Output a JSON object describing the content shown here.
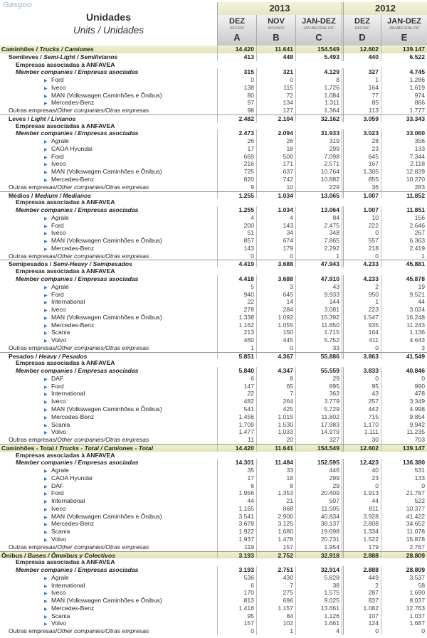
{
  "header": {
    "title": "Unidades",
    "subtitle": "Units / Unidades",
    "years": [
      "2013",
      "2012"
    ],
    "columns": [
      {
        "main": "DEZ",
        "sub": "DEC/DIC",
        "letter": "A"
      },
      {
        "main": "NOV",
        "sub": "NOV/NOV",
        "letter": "B"
      },
      {
        "main": "JAN-DEZ",
        "sub": "JAN-BEC/ENE-DIC",
        "letter": "C"
      },
      {
        "main": "DEZ",
        "sub": "DEC/DIC",
        "letter": "D"
      },
      {
        "main": "JAN-DEZ",
        "sub": "JAN-BEC/ENE-DIC",
        "letter": "E"
      }
    ]
  },
  "labels": {
    "assoc": "Empresas associadas à ANFAVEA",
    "member": "Member companies / Empresas asociadas",
    "others_pt": "Outras empresas/",
    "others_en": "Other companies",
    "others_es": "/Otras empresas"
  },
  "top": {
    "pt": "Caminhões / ",
    "en": "Trucks / Camiones",
    "values": [
      "14.420",
      "11.641",
      "154.549",
      "12.602",
      "139.147"
    ]
  },
  "sections": [
    {
      "pt": "Semileves / ",
      "en": "Semi-Light / Semilivianos",
      "values": [
        "413",
        "448",
        "5.493",
        "440",
        "6.522"
      ],
      "member": [
        "315",
        "321",
        "4.129",
        "327",
        "4.745"
      ],
      "companies": [
        {
          "name": "Ford",
          "values": [
            "0",
            "0",
            "8",
            "1",
            "1.286"
          ]
        },
        {
          "name": "Iveco",
          "values": [
            "138",
            "115",
            "1.726",
            "164",
            "1.619"
          ]
        },
        {
          "name": "MAN (Volkswagen Caminhões e Ônibus)",
          "values": [
            "80",
            "72",
            "1.084",
            "77",
            "974"
          ]
        },
        {
          "name": "Mercedes-Benz",
          "values": [
            "97",
            "134",
            "1.311",
            "85",
            "866"
          ]
        }
      ],
      "others": [
        "98",
        "127",
        "1.364",
        "113",
        "1.777"
      ]
    },
    {
      "pt": "Leves / ",
      "en": "Light / Livianos",
      "values": [
        "2.482",
        "2.104",
        "32.162",
        "3.059",
        "33.343"
      ],
      "member": [
        "2.473",
        "2.094",
        "31.933",
        "3.023",
        "33.060"
      ],
      "companies": [
        {
          "name": "Agrale",
          "values": [
            "26",
            "26",
            "319",
            "28",
            "356"
          ]
        },
        {
          "name": "CAOA Hyundai",
          "values": [
            "17",
            "18",
            "299",
            "23",
            "133"
          ]
        },
        {
          "name": "Ford",
          "values": [
            "669",
            "500",
            "7.098",
            "645",
            "7.344"
          ]
        },
        {
          "name": "Iveco",
          "values": [
            "216",
            "171",
            "2.571",
            "167",
            "2.118"
          ]
        },
        {
          "name": "MAN (Volkswagen Caminhões e Ônibus)",
          "values": [
            "725",
            "637",
            "10.764",
            "1.305",
            "12.839"
          ]
        },
        {
          "name": "Mercedes-Benz",
          "values": [
            "820",
            "742",
            "10.882",
            "855",
            "10.270"
          ]
        }
      ],
      "others": [
        "9",
        "10",
        "229",
        "36",
        "283"
      ]
    },
    {
      "pt": "Médios / ",
      "en": "Medium / Medianos",
      "values": [
        "1.255",
        "1.034",
        "13.065",
        "1.007",
        "11.852"
      ],
      "member": [
        "1.255",
        "1.034",
        "13.064",
        "1.007",
        "11.851"
      ],
      "companies": [
        {
          "name": "Agrale",
          "values": [
            "4",
            "4",
            "84",
            "10",
            "156"
          ]
        },
        {
          "name": "Ford",
          "values": [
            "200",
            "143",
            "2.475",
            "222",
            "2.646"
          ]
        },
        {
          "name": "Iveco",
          "values": [
            "51",
            "34",
            "348",
            "0",
            "267"
          ]
        },
        {
          "name": "MAN (Volkswagen Caminhões e Ônibus)",
          "values": [
            "857",
            "674",
            "7.865",
            "557",
            "6.363"
          ]
        },
        {
          "name": "Mercedes-Benz",
          "values": [
            "143",
            "179",
            "2.292",
            "218",
            "2.419"
          ]
        }
      ],
      "others": [
        "0",
        "0",
        "1",
        "0",
        "1"
      ]
    },
    {
      "pt": "Semipesados / ",
      "en": "Semi-Heavy / Semipesados",
      "values": [
        "4.419",
        "3.688",
        "47.943",
        "4.233",
        "45.881"
      ],
      "member": [
        "4.418",
        "3.688",
        "47.910",
        "4.233",
        "45.878"
      ],
      "companies": [
        {
          "name": "Agrale",
          "values": [
            "5",
            "3",
            "43",
            "2",
            "19"
          ]
        },
        {
          "name": "Ford",
          "values": [
            "940",
            "645",
            "9.933",
            "950",
            "9.521"
          ]
        },
        {
          "name": "International",
          "values": [
            "22",
            "14",
            "144",
            "1",
            "44"
          ]
        },
        {
          "name": "Iveco",
          "values": [
            "278",
            "284",
            "3.081",
            "223",
            "3.024"
          ]
        },
        {
          "name": "MAN (Volkswagen Caminhões e Ônibus)",
          "values": [
            "1.338",
            "1.092",
            "15.392",
            "1.547",
            "16.248"
          ]
        },
        {
          "name": "Mercedes-Benz",
          "values": [
            "1.162",
            "1.055",
            "11.850",
            "935",
            "11.243"
          ]
        },
        {
          "name": "Scania",
          "values": [
            "213",
            "150",
            "1.715",
            "164",
            "1.136"
          ]
        },
        {
          "name": "Volvo",
          "values": [
            "460",
            "445",
            "5.752",
            "411",
            "4.643"
          ]
        }
      ],
      "others": [
        "1",
        "0",
        "33",
        "0",
        "3"
      ]
    },
    {
      "pt": "Pesados / ",
      "en": "Heavy / Pesados",
      "values": [
        "5.851",
        "4.367",
        "55.886",
        "3.863",
        "41.549"
      ],
      "member": [
        "5.840",
        "4.347",
        "55.559",
        "3.833",
        "40.846"
      ],
      "companies": [
        {
          "name": "DAF",
          "values": [
            "6",
            "8",
            "29",
            "0",
            "0"
          ]
        },
        {
          "name": "Ford",
          "values": [
            "147",
            "65",
            "895",
            "95",
            "990"
          ]
        },
        {
          "name": "International",
          "values": [
            "22",
            "7",
            "363",
            "43",
            "478"
          ]
        },
        {
          "name": "Iveco",
          "values": [
            "482",
            "264",
            "3.779",
            "257",
            "3.349"
          ]
        },
        {
          "name": "MAN (Volkswagen Caminhões e Ônibus)",
          "values": [
            "541",
            "425",
            "5.729",
            "442",
            "4.998"
          ]
        },
        {
          "name": "Mercedes-Benz",
          "values": [
            "1.456",
            "1.015",
            "11.802",
            "715",
            "9.854"
          ]
        },
        {
          "name": "Scania",
          "values": [
            "1.709",
            "1.530",
            "17.983",
            "1.170",
            "9.942"
          ]
        },
        {
          "name": "Volvo",
          "values": [
            "1.477",
            "1.033",
            "14.979",
            "1.111",
            "11.235"
          ]
        }
      ],
      "others": [
        "11",
        "20",
        "327",
        "30",
        "703"
      ]
    },
    {
      "hl": true,
      "pt": "Caminhões - Total / ",
      "en": "Trucks - Total  / Camiones - Total",
      "values": [
        "14.420",
        "11.641",
        "154.549",
        "12.602",
        "139.147"
      ],
      "member": [
        "14.301",
        "11.484",
        "152.595",
        "12.423",
        "136.380"
      ],
      "companies": [
        {
          "name": "Agrale",
          "values": [
            "35",
            "33",
            "446",
            "40",
            "531"
          ]
        },
        {
          "name": "CAOA Hyundai",
          "values": [
            "17",
            "18",
            "299",
            "23",
            "133"
          ]
        },
        {
          "name": "DAF",
          "values": [
            "6",
            "8",
            "29",
            "0",
            "0"
          ]
        },
        {
          "name": "Ford",
          "values": [
            "1.956",
            "1.353",
            "20.409",
            "1.913",
            "21.787"
          ]
        },
        {
          "name": "International",
          "values": [
            "44",
            "21",
            "507",
            "44",
            "522"
          ]
        },
        {
          "name": "Iveco",
          "values": [
            "1.165",
            "868",
            "11.505",
            "811",
            "10.377"
          ]
        },
        {
          "name": "MAN (Volkswagen Caminhões e Ônibus)",
          "values": [
            "3.541",
            "2.900",
            "40.834",
            "3.928",
            "41.422"
          ]
        },
        {
          "name": "Mercedes-Benz",
          "values": [
            "3.678",
            "3.125",
            "38.137",
            "2.808",
            "34.652"
          ]
        },
        {
          "name": "Scania",
          "values": [
            "1.922",
            "1.680",
            "19.698",
            "1.334",
            "11.078"
          ]
        },
        {
          "name": "Volvo",
          "values": [
            "1.937",
            "1.478",
            "20.731",
            "1.522",
            "15.878"
          ]
        }
      ],
      "others": [
        "119",
        "157",
        "1.954",
        "179",
        "2.767"
      ]
    },
    {
      "hl": true,
      "pt": "Ônibus / ",
      "en": "Buses / Ômnibus y Colectivos",
      "values": [
        "3.193",
        "2.752",
        "32.918",
        "2.888",
        "28.809"
      ],
      "member": [
        "3.193",
        "2.751",
        "32.914",
        "2.888",
        "28.809"
      ],
      "companies": [
        {
          "name": "Agrale",
          "values": [
            "536",
            "430",
            "5.828",
            "449",
            "3.537"
          ]
        },
        {
          "name": "International",
          "values": [
            "6",
            "7",
            "38",
            "2",
            "58"
          ]
        },
        {
          "name": "Iveco",
          "values": [
            "170",
            "275",
            "1.575",
            "287",
            "1.690"
          ]
        },
        {
          "name": "MAN (Volkswagen Caminhões e Ônibus)",
          "values": [
            "813",
            "696",
            "9.025",
            "837",
            "8.037"
          ]
        },
        {
          "name": "Mercedes-Benz",
          "values": [
            "1.416",
            "1.157",
            "13.661",
            "1.082",
            "12.763"
          ]
        },
        {
          "name": "Scania",
          "values": [
            "95",
            "84",
            "1.126",
            "107",
            "1.037"
          ]
        },
        {
          "name": "Volvo",
          "values": [
            "157",
            "102",
            "1.661",
            "124",
            "1.687"
          ]
        }
      ],
      "others": [
        "0",
        "1",
        "4",
        "0",
        "0"
      ]
    }
  ],
  "watermark": "Gasgoo auto.gasgoo.com",
  "colors": {
    "highlight": "#e8e8c0",
    "bullet": "#2a7fd0",
    "header": "#d0d0d0"
  }
}
